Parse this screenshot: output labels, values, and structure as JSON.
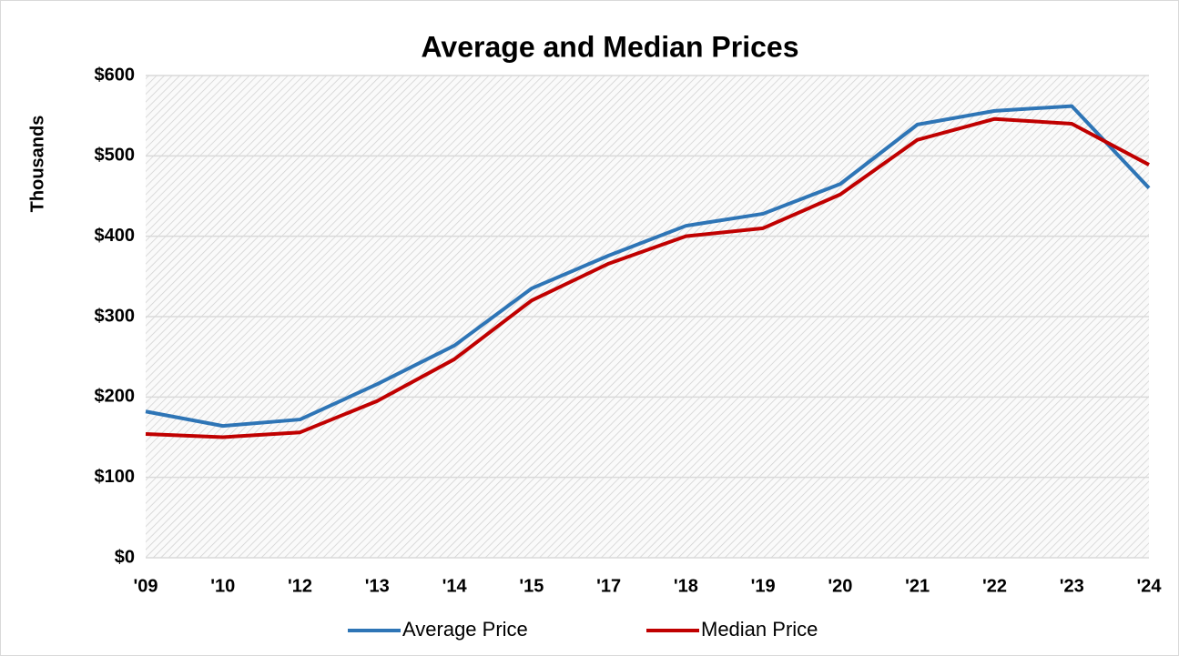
{
  "chart_data": {
    "type": "line",
    "title": "Average and Median Prices",
    "y_label": "Thousands",
    "categories": [
      "'09",
      "'10",
      "'12",
      "'13",
      "'14",
      "'15",
      "'17",
      "'18",
      "'19",
      "'20",
      "'21",
      "'22",
      "'23",
      "'24"
    ],
    "series": [
      {
        "name": "Average Price",
        "color": "#2e75b6",
        "values": [
          182,
          164,
          172,
          216,
          264,
          335,
          376,
          413,
          428,
          465,
          539,
          556,
          562,
          460
        ]
      },
      {
        "name": "Median Price",
        "color": "#c00000",
        "values": [
          154,
          150,
          156,
          195,
          247,
          320,
          366,
          400,
          410,
          452,
          520,
          546,
          540,
          489
        ]
      }
    ],
    "ylim": [
      0,
      600
    ],
    "yticks": [
      {
        "value": 0,
        "label": "$0"
      },
      {
        "value": 100,
        "label": "$100"
      },
      {
        "value": 200,
        "label": "$200"
      },
      {
        "value": 300,
        "label": "$300"
      },
      {
        "value": 400,
        "label": "$400"
      },
      {
        "value": 500,
        "label": "$500"
      },
      {
        "value": 600,
        "label": "$600"
      }
    ],
    "grid": true,
    "legend": "bottom"
  }
}
